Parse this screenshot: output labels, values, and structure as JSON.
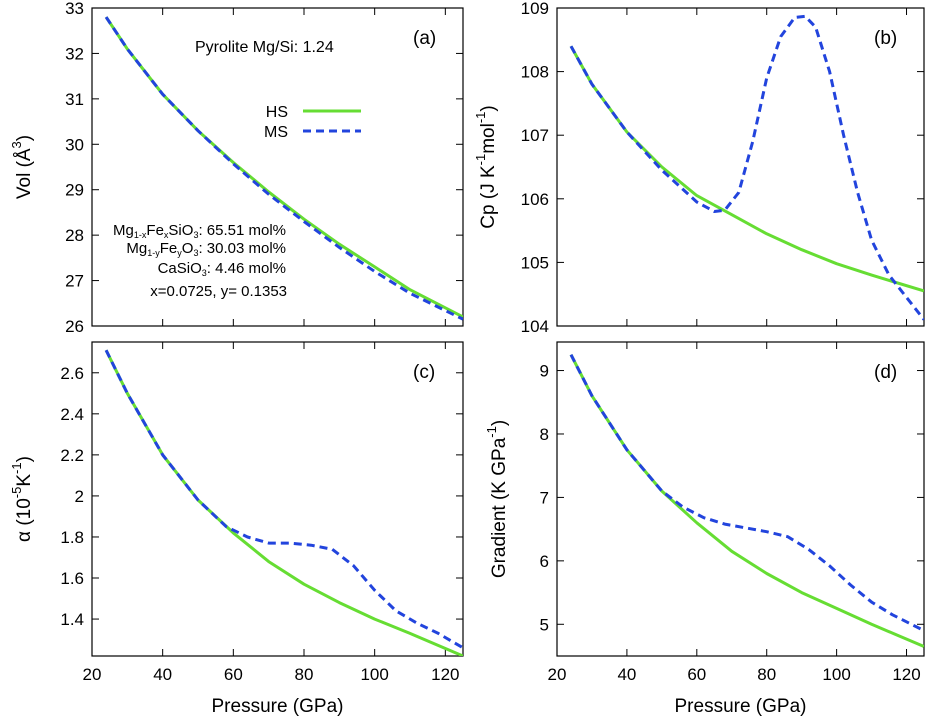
{
  "figure_title": "Pyrolite Mg/Si: 1.24",
  "legend": [
    {
      "label": "HS",
      "color": "#66dd33",
      "style": "solid"
    },
    {
      "label": "MS",
      "color": "#2244dd",
      "style": "dashed"
    }
  ],
  "composition": {
    "mgsio3": {
      "p1": "Mg",
      "s1": "1-x",
      "p2": "Fe",
      "s2": "x",
      "p3": "SiO",
      "s3": "3",
      "rest": ": 65.51 mol%"
    },
    "mgfeo": {
      "p1": "Mg",
      "s1": "1-y",
      "p2": "Fe",
      "s2": "y",
      "p3": "O",
      "s3": "3",
      "rest": ": 30.03 mol%"
    },
    "casio3": {
      "p1": "CaSiO",
      "s1": "3",
      "rest": ":   4.46 mol%"
    },
    "xy_line": "x=0.0725, y= 0.1353"
  },
  "colors": {
    "HS": "#66dd33",
    "MS": "#2244dd"
  },
  "chart_data": [
    {
      "id": "a",
      "type": "line",
      "panel_label": "(a)",
      "title": "Pyrolite Mg/Si: 1.24",
      "xlabel": "",
      "ylabel": {
        "main": "Vol (Å",
        "sup": "3",
        "end": ")"
      },
      "xlim": [
        20,
        125
      ],
      "ylim": [
        26,
        33
      ],
      "xticks": [
        20,
        40,
        60,
        80,
        100,
        120
      ],
      "yticks": [
        26,
        27,
        28,
        29,
        30,
        31,
        32,
        33
      ],
      "ytick_labels": [
        "26",
        "27",
        "28",
        "29",
        "30",
        "31",
        "32",
        "33"
      ],
      "show_xtick_labels": false,
      "series": [
        {
          "name": "HS",
          "x": [
            24,
            30,
            40,
            50,
            60,
            70,
            80,
            90,
            100,
            110,
            125
          ],
          "y": [
            32.8,
            32.1,
            31.1,
            30.3,
            29.6,
            28.95,
            28.35,
            27.8,
            27.3,
            26.8,
            26.2
          ]
        },
        {
          "name": "MS",
          "x": [
            24,
            30,
            40,
            50,
            60,
            70,
            80,
            90,
            100,
            110,
            125
          ],
          "y": [
            32.8,
            32.1,
            31.1,
            30.3,
            29.57,
            28.9,
            28.3,
            27.73,
            27.2,
            26.72,
            26.15
          ]
        }
      ]
    },
    {
      "id": "b",
      "type": "line",
      "panel_label": "(b)",
      "xlabel": "",
      "ylabel": {
        "main": "Cp (J K",
        "sup": "-1",
        "mid": "mol",
        "sup2": "-1",
        "end": ")"
      },
      "xlim": [
        20,
        125
      ],
      "ylim": [
        104,
        109
      ],
      "xticks": [
        20,
        40,
        60,
        80,
        100,
        120
      ],
      "yticks": [
        104,
        105,
        106,
        107,
        108,
        109
      ],
      "ytick_labels": [
        "104",
        "105",
        "106",
        "107",
        "108",
        "109"
      ],
      "show_xtick_labels": false,
      "series": [
        {
          "name": "HS",
          "x": [
            24,
            30,
            40,
            50,
            60,
            70,
            80,
            90,
            100,
            110,
            125
          ],
          "y": [
            108.4,
            107.8,
            107.05,
            106.5,
            106.05,
            105.75,
            105.45,
            105.2,
            104.98,
            104.8,
            104.55
          ]
        },
        {
          "name": "MS",
          "x": [
            24,
            30,
            40,
            50,
            60,
            65,
            68,
            72,
            76,
            80,
            84,
            88,
            91,
            94,
            98,
            102,
            106,
            110,
            115,
            120,
            125
          ],
          "y": [
            108.4,
            107.8,
            107.05,
            106.45,
            105.95,
            105.8,
            105.82,
            106.1,
            106.9,
            107.9,
            108.55,
            108.85,
            108.87,
            108.7,
            108.0,
            107.0,
            106.1,
            105.35,
            104.8,
            104.45,
            104.1
          ]
        }
      ]
    },
    {
      "id": "c",
      "type": "line",
      "panel_label": "(c)",
      "xlabel": "Pressure (GPa)",
      "ylabel": {
        "main": "α  (10",
        "sup": "-5",
        "mid": "K",
        "sup2": "-1",
        "end": ")"
      },
      "xlim": [
        20,
        125
      ],
      "ylim": [
        1.22,
        2.75
      ],
      "xticks": [
        20,
        40,
        60,
        80,
        100,
        120
      ],
      "xtick_labels": [
        "20",
        "40",
        "60",
        "80",
        "100",
        "120"
      ],
      "yticks": [
        1.4,
        1.6,
        1.8,
        2.0,
        2.2,
        2.4,
        2.6
      ],
      "ytick_labels": [
        "1.4",
        "1.6",
        "1.8",
        "2",
        "2.2",
        "2.4",
        "2.6"
      ],
      "show_xtick_labels": true,
      "series": [
        {
          "name": "HS",
          "x": [
            24,
            30,
            40,
            50,
            60,
            70,
            80,
            90,
            100,
            110,
            125
          ],
          "y": [
            2.71,
            2.5,
            2.2,
            1.98,
            1.82,
            1.68,
            1.57,
            1.48,
            1.4,
            1.33,
            1.22
          ]
        },
        {
          "name": "MS",
          "x": [
            24,
            30,
            40,
            50,
            58,
            64,
            70,
            76,
            82,
            88,
            94,
            100,
            106,
            112,
            118,
            125
          ],
          "y": [
            2.71,
            2.5,
            2.2,
            1.98,
            1.85,
            1.8,
            1.77,
            1.77,
            1.76,
            1.74,
            1.66,
            1.54,
            1.44,
            1.38,
            1.33,
            1.26
          ]
        }
      ]
    },
    {
      "id": "d",
      "type": "line",
      "panel_label": "(d)",
      "xlabel": "Pressure (GPa)",
      "ylabel": {
        "main": "Gradient (K GPa",
        "sup": "-1",
        "end": ")"
      },
      "xlim": [
        20,
        125
      ],
      "ylim": [
        4.5,
        9.45
      ],
      "xticks": [
        20,
        40,
        60,
        80,
        100,
        120
      ],
      "xtick_labels": [
        "20",
        "40",
        "60",
        "80",
        "100",
        "120"
      ],
      "yticks": [
        5,
        6,
        7,
        8,
        9
      ],
      "ytick_labels": [
        "5",
        "6",
        "7",
        "8",
        "9"
      ],
      "show_xtick_labels": true,
      "series": [
        {
          "name": "HS",
          "x": [
            24,
            30,
            40,
            50,
            60,
            70,
            80,
            90,
            100,
            110,
            125
          ],
          "y": [
            9.25,
            8.6,
            7.75,
            7.1,
            6.6,
            6.15,
            5.8,
            5.5,
            5.25,
            5.0,
            4.65
          ]
        },
        {
          "name": "MS",
          "x": [
            24,
            30,
            40,
            50,
            56,
            62,
            68,
            74,
            80,
            86,
            92,
            98,
            104,
            110,
            116,
            125
          ],
          "y": [
            9.25,
            8.6,
            7.75,
            7.1,
            6.85,
            6.68,
            6.58,
            6.52,
            6.46,
            6.38,
            6.18,
            5.92,
            5.62,
            5.35,
            5.15,
            4.9
          ]
        }
      ]
    }
  ]
}
